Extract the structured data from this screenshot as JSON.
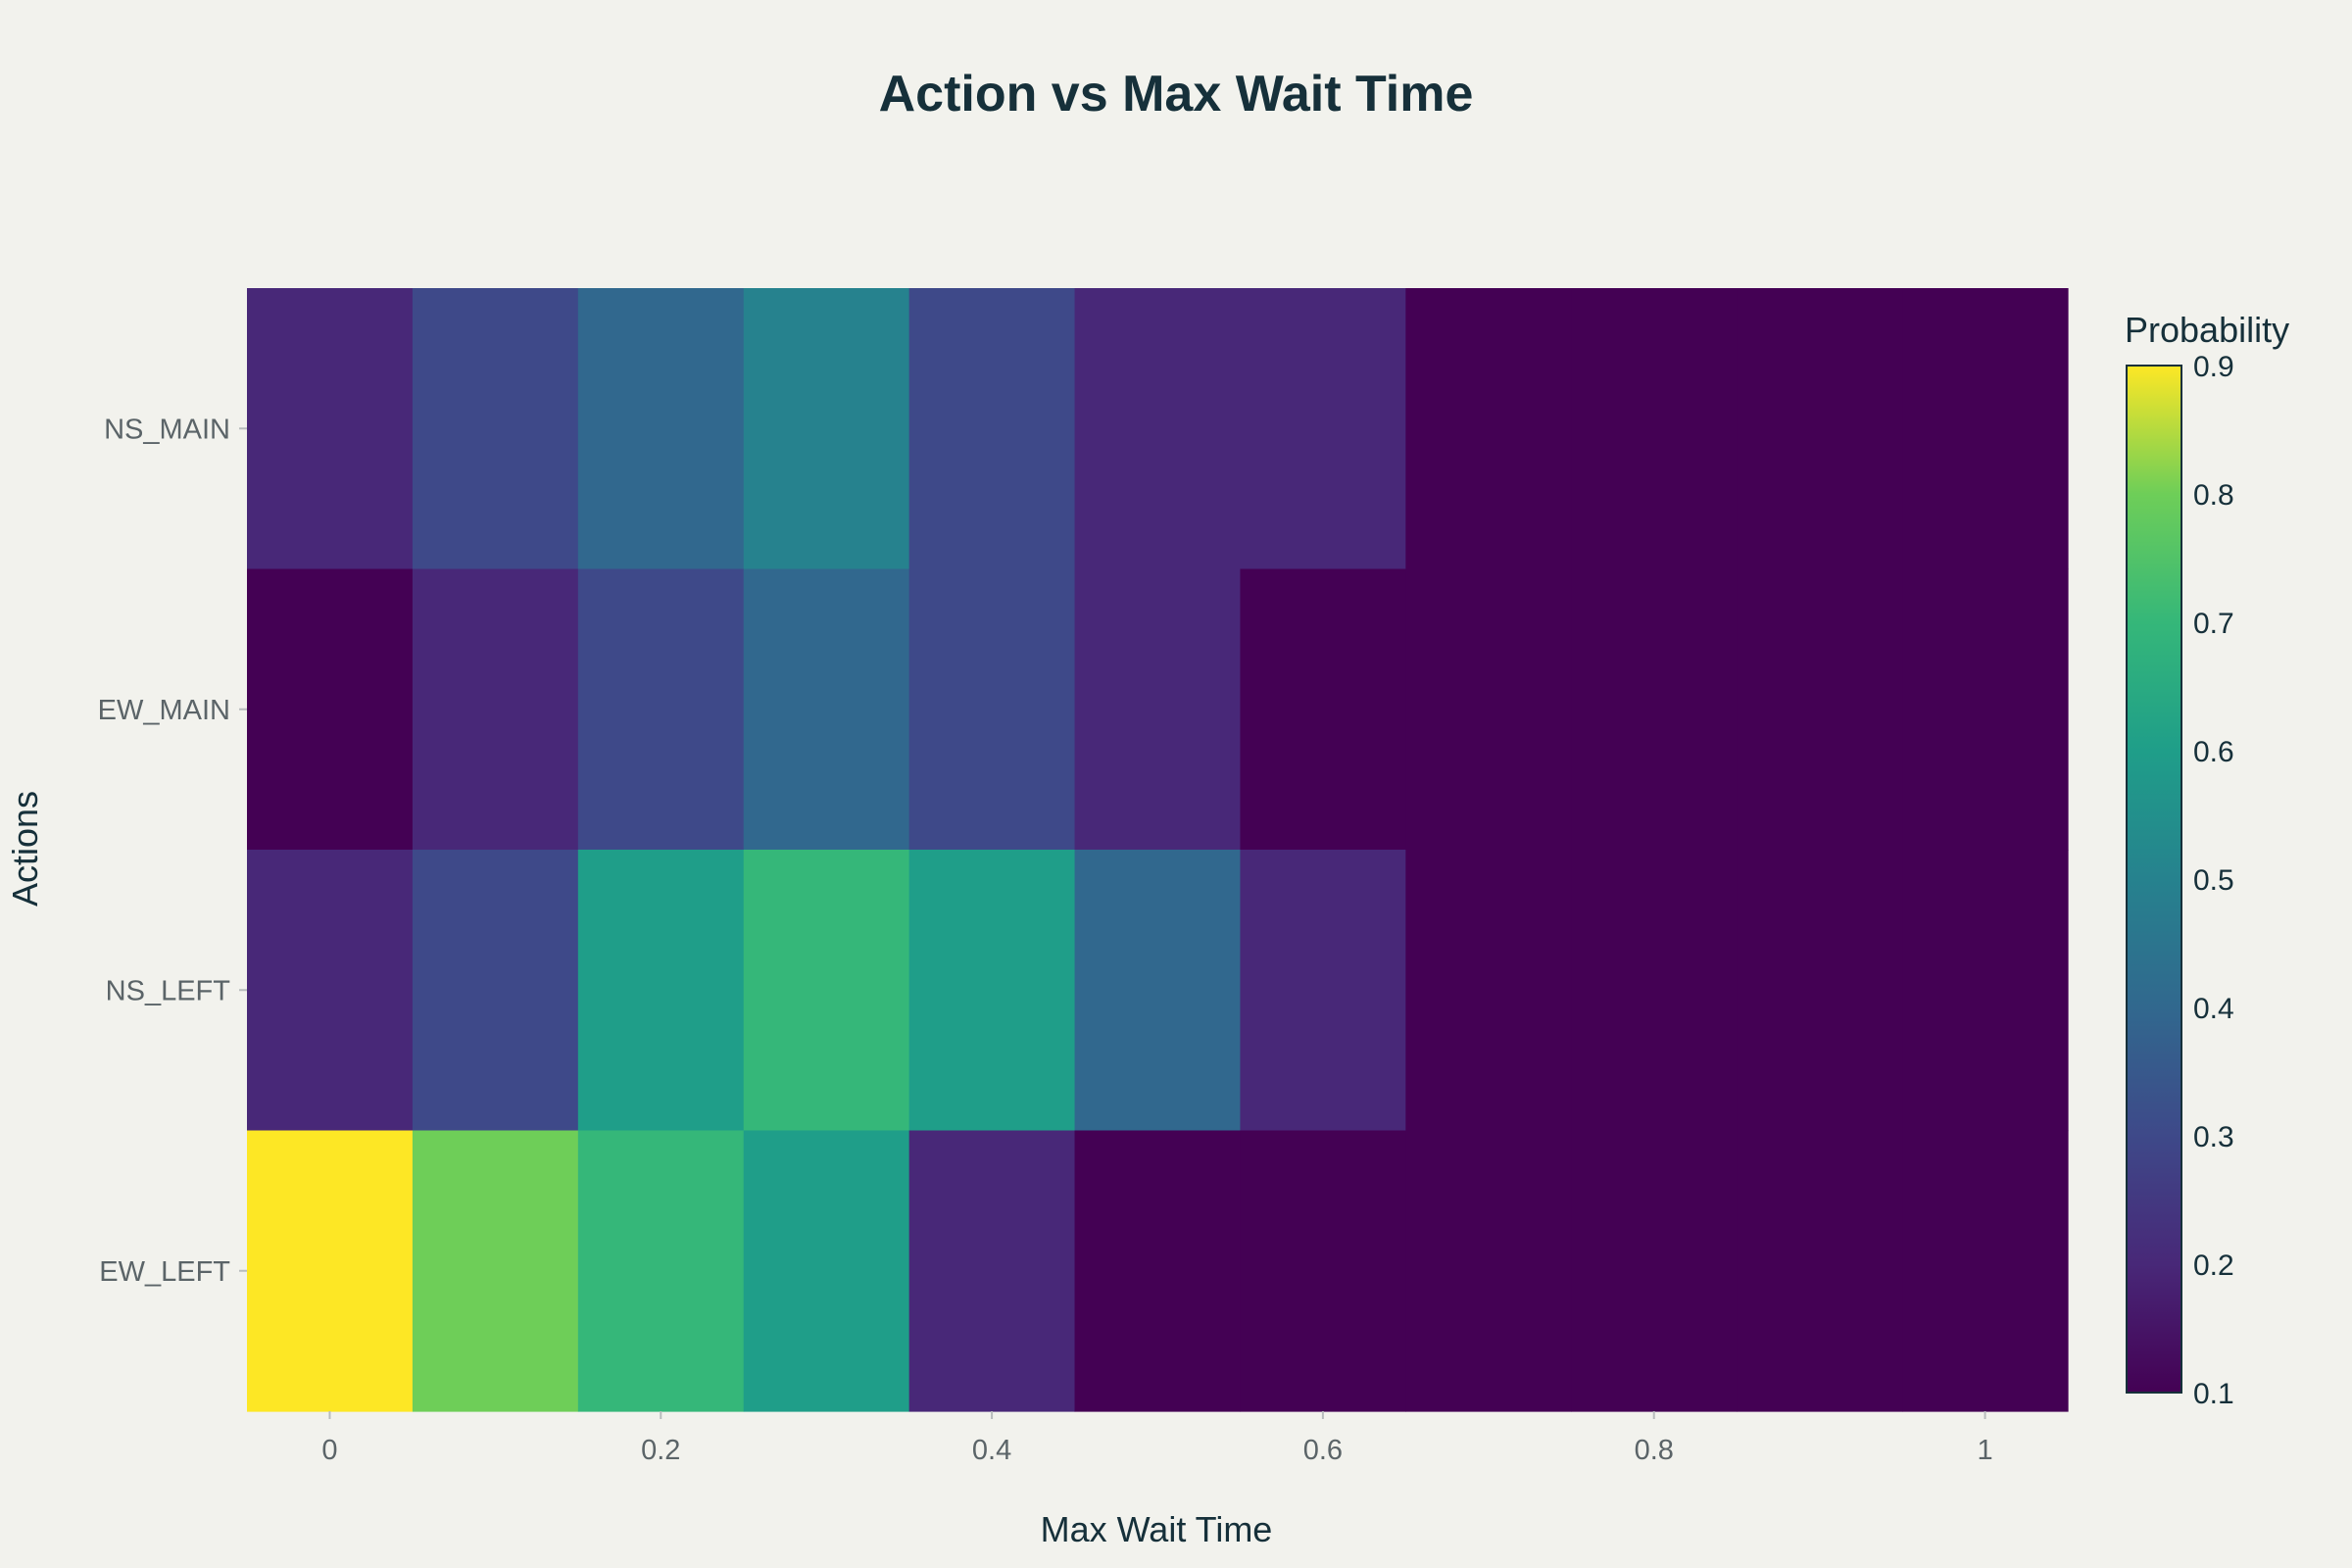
{
  "chart_data": {
    "type": "heatmap",
    "title": "Action vs Max Wait Time",
    "xlabel": "Max Wait Time",
    "ylabel": "Actions",
    "x": [
      0,
      0.1,
      0.2,
      0.3,
      0.4,
      0.5,
      0.6,
      0.7,
      0.8,
      0.9,
      1.0
    ],
    "xlim": [
      -0.05,
      1.05
    ],
    "x_ticks": [
      "0",
      "0.2",
      "0.4",
      "0.6",
      "0.8",
      "1"
    ],
    "y_categories": [
      "NS_MAIN",
      "EW_MAIN",
      "NS_LEFT",
      "EW_LEFT"
    ],
    "z": [
      [
        0.2,
        0.3,
        0.4,
        0.5,
        0.3,
        0.2,
        0.2,
        0.1,
        0.1,
        0.1,
        0.1
      ],
      [
        0.1,
        0.2,
        0.3,
        0.4,
        0.3,
        0.2,
        0.1,
        0.1,
        0.1,
        0.1,
        0.1
      ],
      [
        0.2,
        0.3,
        0.6,
        0.7,
        0.6,
        0.4,
        0.2,
        0.1,
        0.1,
        0.1,
        0.1
      ],
      [
        0.9,
        0.8,
        0.7,
        0.6,
        0.2,
        0.1,
        0.1,
        0.1,
        0.1,
        0.1,
        0.1
      ]
    ],
    "colorscale": "Viridis",
    "colorbar": {
      "title": "Probability",
      "range": [
        0.1,
        0.9
      ],
      "ticks": [
        "0.1",
        "0.2",
        "0.3",
        "0.4",
        "0.5",
        "0.6",
        "0.7",
        "0.8",
        "0.9"
      ]
    },
    "grid": false
  }
}
